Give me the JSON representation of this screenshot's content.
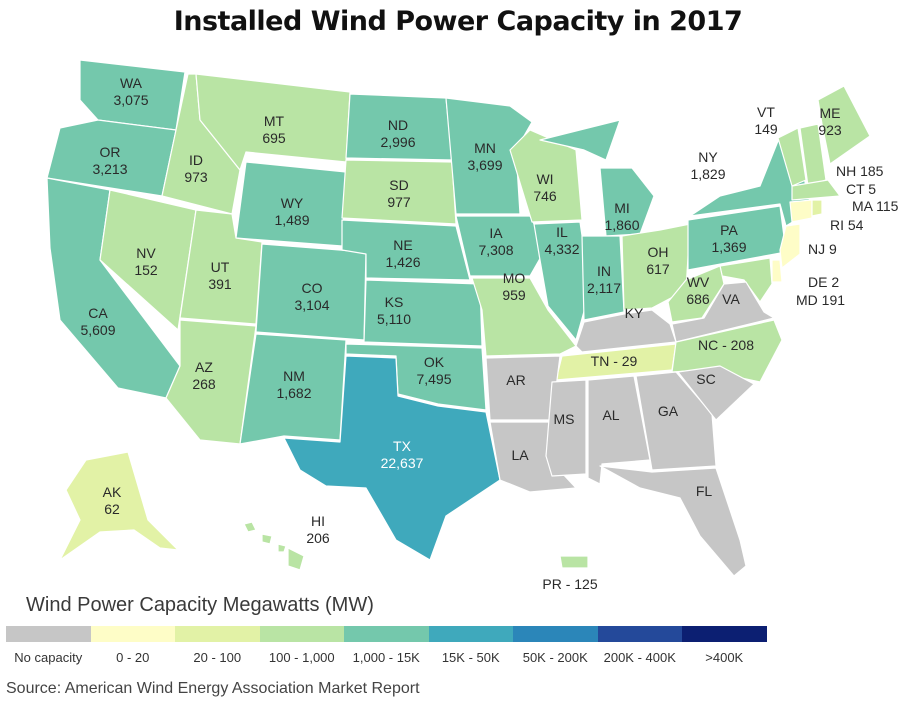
{
  "title": "Installed Wind Power Capacity in 2017",
  "colors": {
    "no_capacity": "#c6c6c6",
    "0_20": "#fefdc7",
    "20_100": "#e2f2a6",
    "100_1000": "#b9e4a4",
    "1000_15k": "#74c8ac",
    "15k_50k": "#3fa9bc",
    "50k_200k": "#2b86b9",
    "200k_400k": "#24499a",
    "400k_plus": "#0c1f72"
  },
  "states": [
    {
      "abbr": "WA",
      "value": "3,075"
    },
    {
      "abbr": "OR",
      "value": "3,213"
    },
    {
      "abbr": "CA",
      "value": "5,609"
    },
    {
      "abbr": "ID",
      "value": "973"
    },
    {
      "abbr": "NV",
      "value": "152"
    },
    {
      "abbr": "MT",
      "value": "695"
    },
    {
      "abbr": "WY",
      "value": "1,489"
    },
    {
      "abbr": "UT",
      "value": "391"
    },
    {
      "abbr": "AZ",
      "value": "268"
    },
    {
      "abbr": "CO",
      "value": "3,104"
    },
    {
      "abbr": "NM",
      "value": "1,682"
    },
    {
      "abbr": "ND",
      "value": "2,996"
    },
    {
      "abbr": "SD",
      "value": "977"
    },
    {
      "abbr": "NE",
      "value": "1,426"
    },
    {
      "abbr": "KS",
      "value": "5,110"
    },
    {
      "abbr": "OK",
      "value": "7,495"
    },
    {
      "abbr": "TX",
      "value": "22,637"
    },
    {
      "abbr": "MN",
      "value": "3,699"
    },
    {
      "abbr": "IA",
      "value": "7,308"
    },
    {
      "abbr": "MO",
      "value": "959"
    },
    {
      "abbr": "WI",
      "value": "746"
    },
    {
      "abbr": "IL",
      "value": "4,332"
    },
    {
      "abbr": "MI",
      "value": "1,860"
    },
    {
      "abbr": "IN",
      "value": "2,117"
    },
    {
      "abbr": "OH",
      "value": "617"
    },
    {
      "abbr": "PA",
      "value": "1,369"
    },
    {
      "abbr": "NY",
      "value": "1,829"
    },
    {
      "abbr": "WV",
      "value": "686"
    },
    {
      "abbr": "VT",
      "value": "149"
    },
    {
      "abbr": "ME",
      "value": "923"
    },
    {
      "abbr": "AK",
      "value": "62"
    },
    {
      "abbr": "HI",
      "value": "206"
    }
  ],
  "no_capacity_states": [
    "AR",
    "LA",
    "MS",
    "AL",
    "GA",
    "SC",
    "FL",
    "KY",
    "VA"
  ],
  "inline_labels": {
    "TN": "TN - 29",
    "NC": "NC - 208",
    "PR": "PR - 125"
  },
  "callouts": {
    "NH": "NH 185",
    "CT": "CT  5",
    "MA": "MA 115",
    "RI": "RI   54",
    "NJ": "NJ  9",
    "DE": "DE  2",
    "MD": "MD 191"
  },
  "legend": {
    "title": "Wind Power Capacity Megawatts (MW)",
    "items": [
      {
        "label": "No capacity",
        "color": "#c6c6c6"
      },
      {
        "label": "0 - 20",
        "color": "#fefdc7"
      },
      {
        "label": "20 - 100",
        "color": "#e2f2a6"
      },
      {
        "label": "100 - 1,000",
        "color": "#b9e4a4"
      },
      {
        "label": "1,000 - 15K",
        "color": "#74c8ac"
      },
      {
        "label": "15K - 50K",
        "color": "#3fa9bc"
      },
      {
        "label": "50K - 200K",
        "color": "#2b86b9"
      },
      {
        "label": "200K - 400K",
        "color": "#24499a"
      },
      {
        "label": ">400K",
        "color": "#0c1f72"
      }
    ]
  },
  "source": "Source: American Wind Energy Association Market Report"
}
